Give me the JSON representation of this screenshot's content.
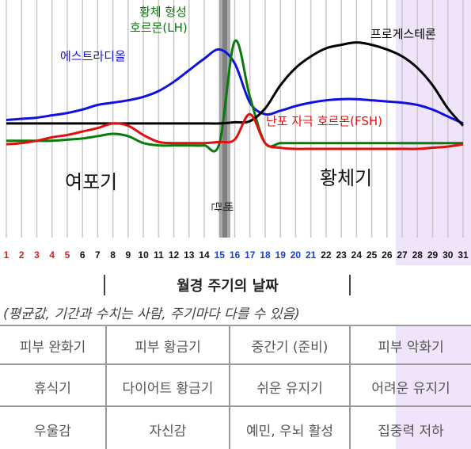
{
  "chart_data": {
    "type": "line",
    "x": [
      1,
      2,
      3,
      4,
      5,
      6,
      7,
      8,
      9,
      10,
      11,
      12,
      13,
      14,
      15,
      16,
      17,
      18,
      19,
      20,
      21,
      22,
      23,
      24,
      25,
      26,
      27,
      28,
      29,
      30,
      31
    ],
    "xlim": [
      1,
      31
    ],
    "day_colors": [
      "#d62020",
      "#d62020",
      "#d62020",
      "#d62020",
      "#d62020",
      "#111111",
      "#111111",
      "#111111",
      "#111111",
      "#111111",
      "#111111",
      "#111111",
      "#111111",
      "#111111",
      "#1a3fd0",
      "#1a3fd0",
      "#1a3fd0",
      "#1a3fd0",
      "#1a3fd0",
      "#1a3fd0",
      "#1a3fd0",
      "#111111",
      "#111111",
      "#111111",
      "#111111",
      "#111111",
      "#111111",
      "#111111",
      "#111111",
      "#111111",
      "#111111"
    ],
    "series": [
      {
        "name": "에스트라디올",
        "color": "#1010e0",
        "values": [
          25,
          26,
          27,
          29,
          31,
          34,
          38,
          40,
          42,
          45,
          50,
          58,
          68,
          78,
          86,
          74,
          40,
          30,
          33,
          37,
          40,
          42,
          43,
          43,
          42,
          41,
          40,
          38,
          34,
          28,
          22
        ]
      },
      {
        "name": "황체 형성\n호르몬(LH)",
        "color": "#0a7a0a",
        "values": [
          7,
          7,
          7,
          7,
          8,
          9,
          11,
          13,
          11,
          5,
          3,
          3,
          3,
          3,
          5,
          93,
          45,
          5,
          5,
          5,
          5,
          5,
          5,
          5,
          5,
          5,
          5,
          5,
          5,
          5,
          5
        ]
      },
      {
        "name": "프로게스테론",
        "color": "#000000",
        "values": [
          22,
          22,
          22,
          22,
          22,
          22,
          22,
          22,
          22,
          22,
          22,
          22,
          22,
          22,
          22,
          23,
          24,
          35,
          55,
          70,
          80,
          87,
          90,
          92,
          90,
          86,
          80,
          70,
          55,
          35,
          20
        ]
      },
      {
        "name": "난포 자극 호르몬(FSH)",
        "color": "#e01010",
        "values": [
          4,
          5,
          7,
          10,
          12,
          15,
          18,
          22,
          20,
          12,
          6,
          5,
          5,
          5,
          6,
          8,
          30,
          5,
          1,
          0,
          0,
          0,
          0,
          0,
          0,
          0,
          0,
          0,
          1,
          2,
          4
        ]
      }
    ],
    "phase_labels": [
      "여포기",
      "배란",
      "황체기"
    ],
    "ovulation_day": 17,
    "xlabel": "월경 주기의 날짜",
    "note": "(평균값, 기간과 수치는 사람, 주기마다 다를 수 있음)",
    "highlight_day": 31,
    "grid": true
  },
  "table": [
    [
      "피부 완화기",
      "피부 황금기",
      "중간기 (준비)",
      "피부 악화기"
    ],
    [
      "휴식기",
      "다이어트 황금기",
      "쉬운 유지기",
      "어려운 유지기"
    ],
    [
      "우울감",
      "자신감",
      "예민, 우뇌 활성",
      "집중력 저하"
    ]
  ],
  "colors": {
    "grid": "#c8c8c8",
    "ovulation_band": "#9a9a9a",
    "highlight": "#e6d6f6"
  }
}
